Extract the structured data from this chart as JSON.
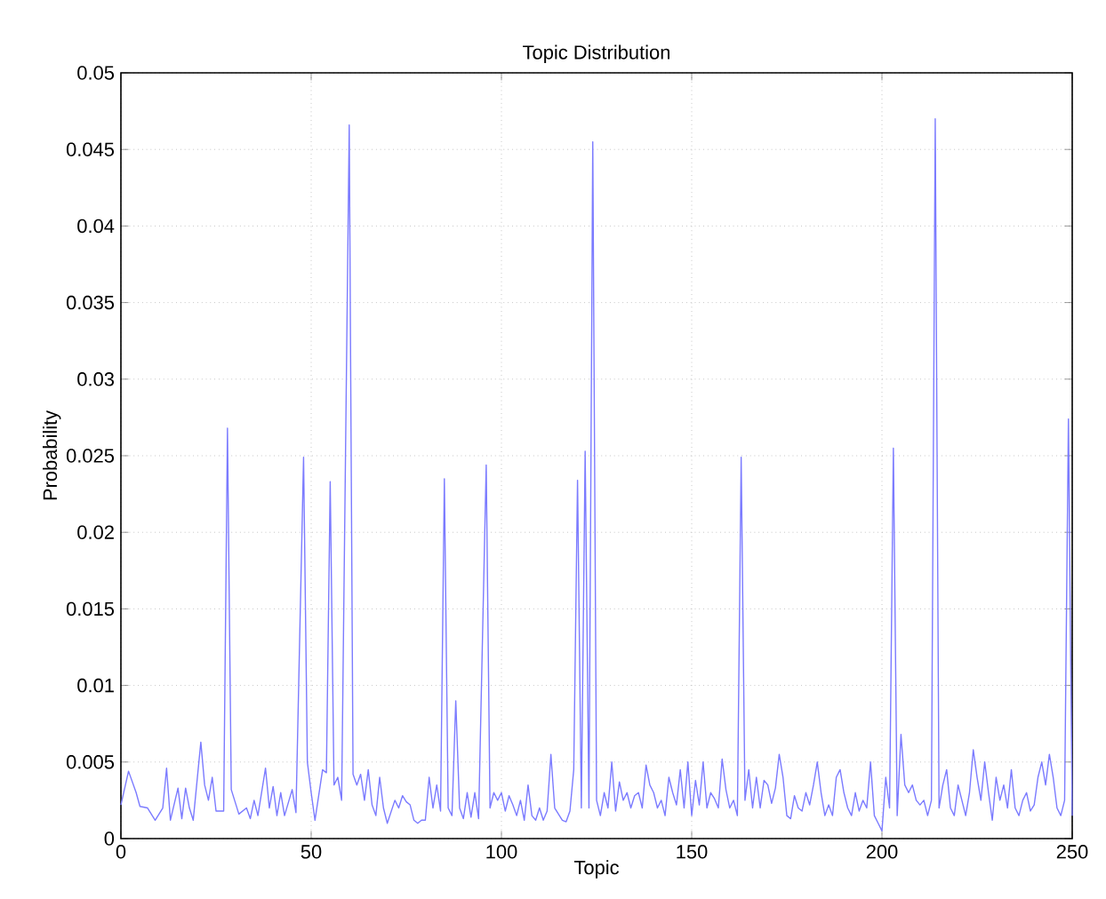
{
  "chart_data": {
    "type": "line",
    "title": "Topic Distribution",
    "xlabel": "Topic",
    "ylabel": "Probability",
    "xlim": [
      0,
      250
    ],
    "xticks": [
      0,
      50,
      100,
      150,
      200,
      250
    ],
    "ylim": [
      0,
      0.05
    ],
    "yticks": [
      0,
      0.005,
      0.01,
      0.015,
      0.02,
      0.025,
      0.03,
      0.035,
      0.04,
      0.045,
      0.05
    ],
    "grid": true,
    "marker": "none",
    "line_style": "solid",
    "series": [
      {
        "color": "#7b7bff",
        "x": [
          0,
          2,
          4,
          5,
          7,
          9,
          11,
          12,
          13,
          15,
          16,
          17,
          18,
          19,
          21,
          22,
          23,
          24,
          25,
          27,
          28,
          29,
          31,
          33,
          34,
          35,
          36,
          38,
          39,
          40,
          41,
          42,
          43,
          45,
          46,
          48,
          49,
          50,
          51,
          53,
          54,
          55,
          56,
          57,
          58,
          60,
          61,
          62,
          63,
          64,
          65,
          66,
          67,
          68,
          69,
          70,
          72,
          73,
          74,
          75,
          76,
          77,
          78,
          79,
          80,
          81,
          82,
          83,
          84,
          85,
          86,
          87,
          88,
          89,
          90,
          91,
          92,
          93,
          94,
          96,
          97,
          98,
          99,
          100,
          101,
          102,
          103,
          104,
          105,
          106,
          107,
          108,
          109,
          110,
          111,
          112,
          113,
          114,
          116,
          117,
          118,
          119,
          120,
          121,
          122,
          123,
          124,
          125,
          126,
          127,
          128,
          129,
          130,
          131,
          132,
          133,
          134,
          135,
          136,
          137,
          138,
          139,
          140,
          141,
          142,
          143,
          144,
          145,
          146,
          147,
          148,
          149,
          150,
          151,
          152,
          153,
          154,
          155,
          156,
          157,
          158,
          159,
          160,
          161,
          162,
          163,
          164,
          165,
          166,
          167,
          168,
          169,
          170,
          171,
          172,
          173,
          174,
          175,
          176,
          177,
          178,
          179,
          180,
          181,
          182,
          183,
          184,
          185,
          186,
          187,
          188,
          189,
          190,
          191,
          192,
          193,
          194,
          195,
          196,
          197,
          198,
          199,
          200,
          201,
          202,
          203,
          204,
          205,
          206,
          207,
          208,
          209,
          210,
          211,
          212,
          213,
          214,
          215,
          216,
          217,
          218,
          219,
          220,
          221,
          222,
          223,
          224,
          225,
          226,
          227,
          228,
          229,
          230,
          231,
          232,
          233,
          234,
          235,
          236,
          237,
          238,
          239,
          240,
          241,
          242,
          243,
          244,
          245,
          246,
          247,
          248,
          249,
          250
        ],
        "values": [
          0.0022,
          0.0044,
          0.003,
          0.0021,
          0.002,
          0.0012,
          0.002,
          0.0046,
          0.0012,
          0.0033,
          0.0013,
          0.0033,
          0.002,
          0.0012,
          0.0063,
          0.0035,
          0.0025,
          0.004,
          0.0018,
          0.0018,
          0.0268,
          0.0032,
          0.0016,
          0.002,
          0.0013,
          0.0025,
          0.0015,
          0.0046,
          0.002,
          0.0034,
          0.0015,
          0.003,
          0.0015,
          0.0032,
          0.0017,
          0.0249,
          0.005,
          0.003,
          0.0012,
          0.0045,
          0.0043,
          0.0233,
          0.0035,
          0.004,
          0.0025,
          0.0466,
          0.0042,
          0.0035,
          0.0042,
          0.0025,
          0.0045,
          0.0022,
          0.0015,
          0.004,
          0.002,
          0.001,
          0.0025,
          0.002,
          0.0028,
          0.0024,
          0.0022,
          0.0012,
          0.001,
          0.0012,
          0.0012,
          0.004,
          0.002,
          0.0035,
          0.0018,
          0.0235,
          0.002,
          0.0015,
          0.009,
          0.002,
          0.0013,
          0.003,
          0.0014,
          0.003,
          0.0013,
          0.0244,
          0.002,
          0.003,
          0.0025,
          0.003,
          0.0018,
          0.0028,
          0.0022,
          0.0015,
          0.0025,
          0.0012,
          0.0035,
          0.0015,
          0.0012,
          0.002,
          0.0012,
          0.0018,
          0.0055,
          0.002,
          0.0012,
          0.0011,
          0.0018,
          0.0045,
          0.0234,
          0.002,
          0.0253,
          0.002,
          0.0455,
          0.0025,
          0.0015,
          0.003,
          0.002,
          0.005,
          0.0018,
          0.0037,
          0.0025,
          0.003,
          0.002,
          0.0028,
          0.003,
          0.002,
          0.0048,
          0.0035,
          0.003,
          0.002,
          0.0025,
          0.0015,
          0.004,
          0.003,
          0.0022,
          0.0045,
          0.002,
          0.005,
          0.0015,
          0.0038,
          0.0022,
          0.005,
          0.002,
          0.003,
          0.0026,
          0.002,
          0.0052,
          0.0032,
          0.002,
          0.0025,
          0.0015,
          0.0249,
          0.0025,
          0.0045,
          0.002,
          0.004,
          0.002,
          0.0038,
          0.0035,
          0.0023,
          0.0033,
          0.0055,
          0.004,
          0.0015,
          0.0013,
          0.0028,
          0.002,
          0.0018,
          0.003,
          0.0022,
          0.0035,
          0.005,
          0.003,
          0.0015,
          0.0022,
          0.0015,
          0.004,
          0.0045,
          0.003,
          0.002,
          0.0015,
          0.003,
          0.0018,
          0.0025,
          0.002,
          0.005,
          0.0015,
          0.001,
          0.0005,
          0.004,
          0.002,
          0.0255,
          0.0015,
          0.0068,
          0.0035,
          0.003,
          0.0035,
          0.0025,
          0.0022,
          0.0025,
          0.0015,
          0.0025,
          0.047,
          0.002,
          0.0035,
          0.0045,
          0.002,
          0.0015,
          0.0035,
          0.0025,
          0.0015,
          0.003,
          0.0058,
          0.004,
          0.0025,
          0.005,
          0.003,
          0.0012,
          0.004,
          0.0025,
          0.0035,
          0.002,
          0.0045,
          0.002,
          0.0015,
          0.0025,
          0.003,
          0.0018,
          0.0022,
          0.004,
          0.005,
          0.0035,
          0.0055,
          0.004,
          0.002,
          0.0015,
          0.0025,
          0.0274,
          0.0015
        ]
      }
    ]
  }
}
